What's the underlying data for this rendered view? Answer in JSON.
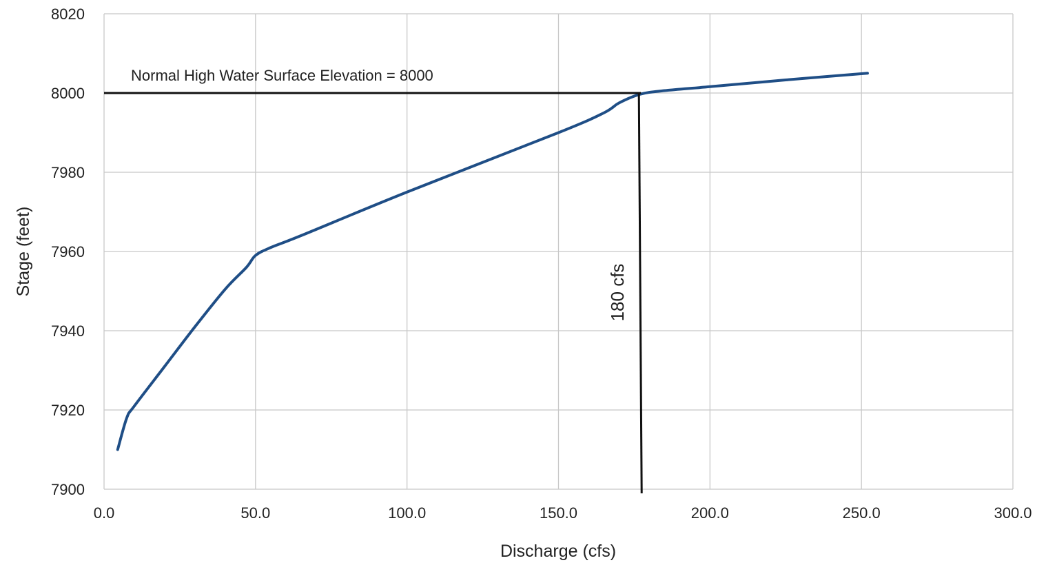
{
  "chart_data": {
    "type": "line",
    "title": "",
    "xlabel": "Discharge (cfs)",
    "ylabel": "Stage (feet)",
    "xlim": [
      0,
      300
    ],
    "ylim": [
      7900,
      8020
    ],
    "x_ticks": [
      "0.0",
      "50.0",
      "100.0",
      "150.0",
      "200.0",
      "250.0",
      "300.0"
    ],
    "y_ticks": [
      "7900",
      "7920",
      "7940",
      "7960",
      "7980",
      "8000",
      "8020"
    ],
    "grid": true,
    "legend": "none",
    "series": [
      {
        "color": "#1f4e86",
        "points": [
          [
            4.5,
            7910
          ],
          [
            7.5,
            7918
          ],
          [
            10,
            7921
          ],
          [
            20,
            7931
          ],
          [
            30,
            7941
          ],
          [
            40,
            7950.5
          ],
          [
            47,
            7956
          ],
          [
            50,
            7959
          ],
          [
            55,
            7961
          ],
          [
            65,
            7964
          ],
          [
            100,
            7975
          ],
          [
            150,
            7990
          ],
          [
            165,
            7995
          ],
          [
            170,
            7997.5
          ],
          [
            177,
            7999.7
          ],
          [
            185,
            8000.6
          ],
          [
            200,
            8001.6
          ],
          [
            225,
            8003.3
          ],
          [
            252,
            8005
          ]
        ]
      }
    ],
    "annotations": {
      "horizontal_line_y": 8000,
      "horizontal_line_label": "Normal High Water Surface Elevation = 8000",
      "vertical_line_x": 177,
      "vertical_line_label": "180 cfs"
    }
  }
}
